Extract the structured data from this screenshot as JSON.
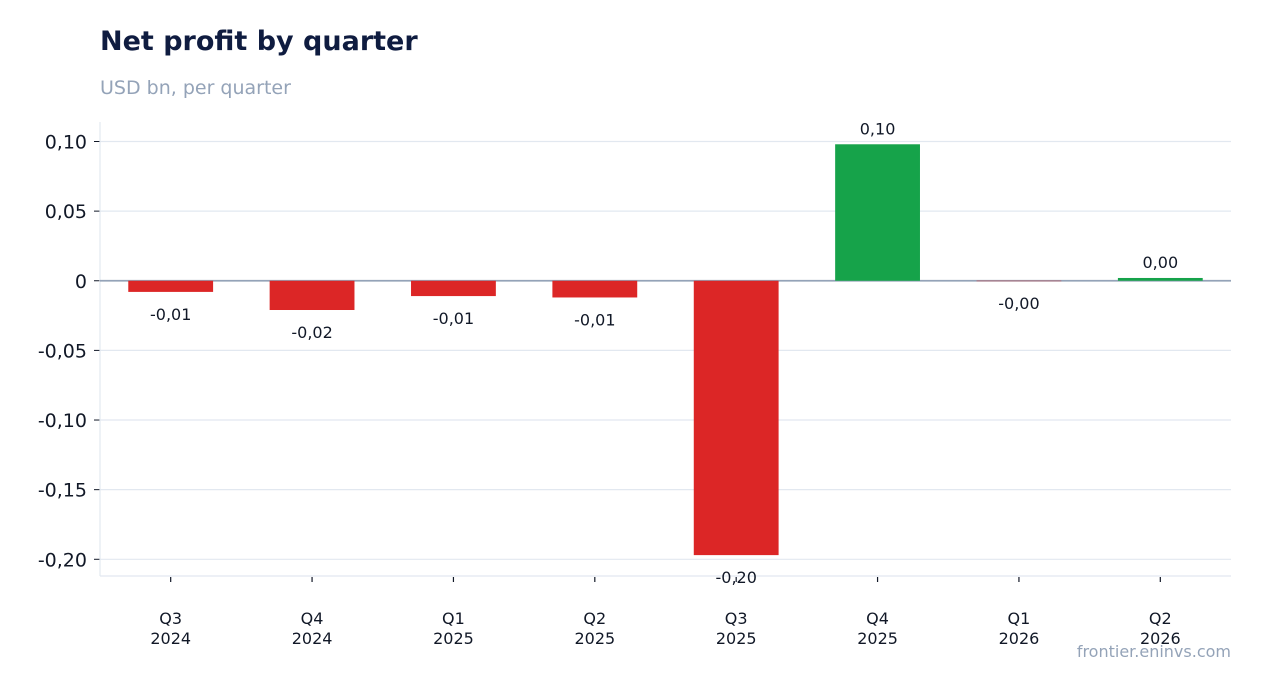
{
  "header": {
    "title": "Net profit by quarter",
    "subtitle": "USD bn, per quarter"
  },
  "footer": {
    "source": "frontier.eninvs.com"
  },
  "colors": {
    "positive": "#16a34a",
    "negative": "#dc2626",
    "grid": "#e2e8f0",
    "zero_line": "#94a3b8",
    "axis_text": "#111827",
    "title": "#0f1c40",
    "muted": "#94a3b8"
  },
  "chart_data": {
    "type": "bar",
    "title": "Net profit by quarter",
    "subtitle": "USD bn, per quarter",
    "categories": [
      [
        "Q3",
        "2024"
      ],
      [
        "Q4",
        "2024"
      ],
      [
        "Q1",
        "2025"
      ],
      [
        "Q2",
        "2025"
      ],
      [
        "Q3",
        "2025"
      ],
      [
        "Q4",
        "2025"
      ],
      [
        "Q1",
        "2026"
      ],
      [
        "Q2",
        "2026"
      ]
    ],
    "values": [
      -0.008,
      -0.021,
      -0.011,
      -0.012,
      -0.197,
      0.098,
      -0.0003,
      0.002
    ],
    "data_labels": [
      "-0,01",
      "-0,02",
      "-0,01",
      "-0,01",
      "-0,20",
      "0,10",
      "-0,00",
      "0,00"
    ],
    "yticks": [
      0.1,
      0.05,
      0,
      -0.05,
      -0.1,
      -0.15,
      -0.2
    ],
    "ytick_labels": [
      "0,10",
      "0,05",
      "0",
      "-0,05",
      "-0,10",
      "-0,15",
      "-0,20"
    ],
    "ylim": [
      -0.212,
      0.114
    ],
    "grid": true,
    "legend": "none"
  }
}
